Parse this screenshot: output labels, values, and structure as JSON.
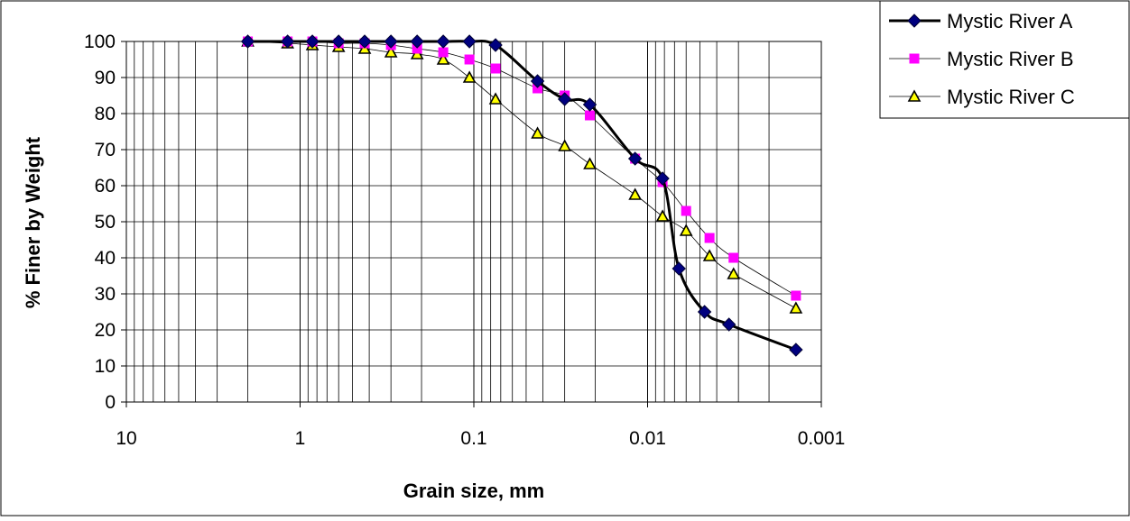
{
  "chart_data": {
    "type": "line",
    "xlabel": "Grain size, mm",
    "ylabel": "% Finer by Weight",
    "xscale": "log",
    "x_reversed": true,
    "xlim": [
      10,
      0.001
    ],
    "ylim": [
      0,
      100
    ],
    "x_ticks": [
      10,
      1,
      0.1,
      0.01,
      0.001
    ],
    "x_tick_labels": [
      "10",
      "1",
      "0.1",
      "0.01",
      "0.001"
    ],
    "y_ticks": [
      0,
      10,
      20,
      30,
      40,
      50,
      60,
      70,
      80,
      90,
      100
    ],
    "y_tick_labels": [
      "0",
      "10",
      "20",
      "30",
      "40",
      "50",
      "60",
      "70",
      "80",
      "90",
      "100"
    ],
    "grid": true,
    "legend_position": "top-right",
    "series": [
      {
        "name": "Mystic River A",
        "color": "#00007F",
        "marker": "diamond",
        "line": "thick",
        "x": [
          2.0,
          1.18,
          0.85,
          0.6,
          0.425,
          0.3,
          0.212,
          0.15,
          0.106,
          0.075,
          0.043,
          0.03,
          0.0215,
          0.0118,
          0.0082,
          0.0066,
          0.0047,
          0.0034,
          0.0014
        ],
        "y": [
          100,
          100,
          100,
          100,
          100,
          100,
          100,
          100,
          100,
          99,
          89,
          84,
          82.5,
          67.5,
          62,
          37,
          25,
          21.5,
          14.5
        ]
      },
      {
        "name": "Mystic River B",
        "color": "#FF00FF",
        "marker": "square",
        "line": "thin",
        "x": [
          2.0,
          1.18,
          0.85,
          0.6,
          0.425,
          0.3,
          0.212,
          0.15,
          0.106,
          0.075,
          0.043,
          0.03,
          0.0215,
          0.0118,
          0.0082,
          0.006,
          0.0044,
          0.0032,
          0.0014
        ],
        "y": [
          100,
          100,
          100,
          99.5,
          99.5,
          99,
          98,
          97,
          95,
          92.5,
          87,
          85,
          79.5,
          67.5,
          61,
          53,
          45.5,
          40,
          29.5
        ]
      },
      {
        "name": "Mystic River C",
        "color": "#000000",
        "marker_fill": "#FFFF00",
        "marker": "triangle",
        "line": "thin",
        "x": [
          2.0,
          1.18,
          0.85,
          0.6,
          0.425,
          0.3,
          0.212,
          0.15,
          0.106,
          0.075,
          0.043,
          0.03,
          0.0215,
          0.0118,
          0.0082,
          0.006,
          0.0044,
          0.0032,
          0.0014
        ],
        "y": [
          100,
          99.5,
          99,
          98.5,
          98,
          97,
          96.5,
          95,
          90,
          84,
          74.5,
          71,
          66,
          57.5,
          51.5,
          47.5,
          40.5,
          35.5,
          26
        ]
      }
    ]
  }
}
